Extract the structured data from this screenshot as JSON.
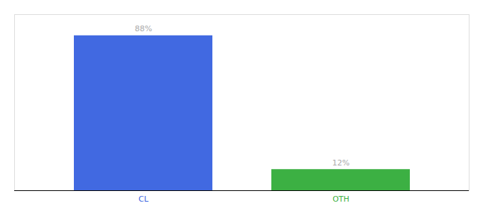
{
  "chart_data": {
    "type": "bar",
    "categories": [
      "CL",
      "OTH"
    ],
    "values": [
      88,
      12
    ],
    "value_labels": [
      "88%",
      "12%"
    ],
    "colors": [
      "#4169E1",
      "#3CB043"
    ],
    "ylim": [
      0,
      100
    ],
    "data_labels": true,
    "tick_labels": "x",
    "grid": false
  }
}
